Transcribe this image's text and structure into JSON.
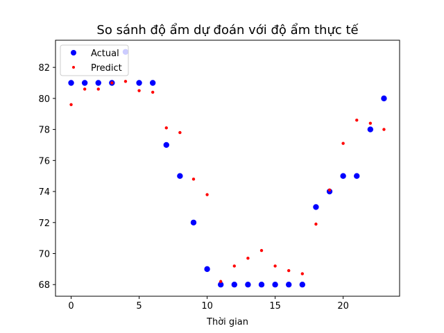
{
  "chart_data": {
    "type": "scatter",
    "title": "So sánh độ ẩm dự đoán với độ ẩm thực tế",
    "xlabel": "Thời gian",
    "ylabel": "",
    "xlim": [
      -1.15,
      24.15
    ],
    "ylim": [
      67.25,
      83.75
    ],
    "xticks": [
      0,
      5,
      10,
      15,
      20
    ],
    "yticks": [
      68,
      70,
      72,
      74,
      76,
      78,
      80,
      82
    ],
    "grid": false,
    "legend_position": "upper-left",
    "series": [
      {
        "name": "Actual",
        "color": "#0000ff",
        "marker": "large-dot",
        "x": [
          0,
          1,
          2,
          3,
          4,
          5,
          6,
          7,
          8,
          9,
          10,
          11,
          12,
          13,
          14,
          15,
          16,
          17,
          18,
          19,
          20,
          21,
          22,
          23
        ],
        "y": [
          81,
          81,
          81,
          81,
          83,
          81,
          81,
          77,
          75,
          72,
          69,
          68,
          68,
          68,
          68,
          68,
          68,
          68,
          73,
          74,
          75,
          75,
          78,
          80
        ]
      },
      {
        "name": "Predict",
        "color": "#ff0000",
        "marker": "small-dot",
        "x": [
          0,
          1,
          2,
          3,
          4,
          5,
          6,
          7,
          8,
          9,
          10,
          11,
          12,
          13,
          14,
          15,
          16,
          17,
          18,
          19,
          20,
          21,
          22,
          23
        ],
        "y": [
          79.6,
          80.6,
          80.6,
          81.0,
          81.1,
          80.5,
          80.4,
          78.1,
          77.8,
          74.8,
          73.8,
          68.2,
          69.2,
          69.7,
          70.2,
          69.2,
          68.9,
          68.7,
          71.9,
          74.1,
          77.1,
          78.6,
          78.4,
          78.0
        ]
      }
    ]
  }
}
